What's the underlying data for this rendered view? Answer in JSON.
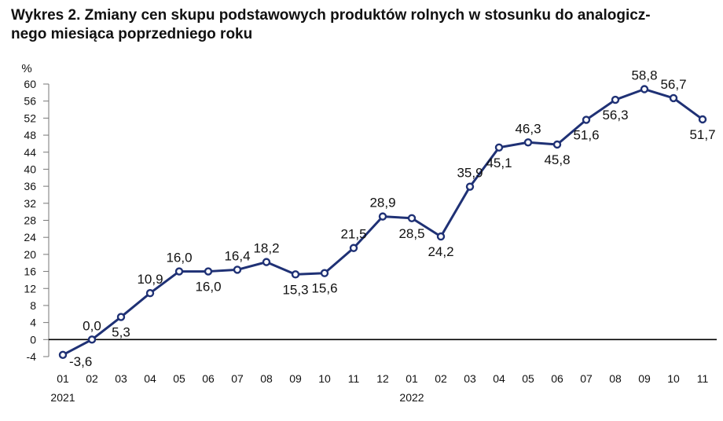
{
  "title": {
    "line1": "Wykres 2. Zmiany cen skupu podstawowych produktów rolnych w stosunku do analogicz-",
    "line2": "nego miesiąca poprzedniego roku"
  },
  "chart_data": {
    "type": "line",
    "ylabel": "%",
    "ylim": [
      -4,
      60
    ],
    "yticks": [
      -4,
      0,
      4,
      8,
      12,
      16,
      20,
      24,
      28,
      32,
      36,
      40,
      44,
      48,
      52,
      56,
      60
    ],
    "categories": [
      "01",
      "02",
      "03",
      "04",
      "05",
      "06",
      "07",
      "08",
      "09",
      "10",
      "11",
      "12",
      "01",
      "02",
      "03",
      "04",
      "05",
      "06",
      "07",
      "08",
      "09",
      "10",
      "11"
    ],
    "year_labels": [
      {
        "index": 0,
        "label": "2021"
      },
      {
        "index": 12,
        "label": "2022"
      }
    ],
    "series": [
      {
        "values": [
          -3.6,
          0.0,
          5.3,
          10.9,
          16.0,
          16.0,
          16.4,
          18.2,
          15.3,
          15.6,
          21.5,
          28.9,
          28.5,
          24.2,
          35.9,
          45.1,
          46.3,
          45.8,
          51.6,
          56.3,
          58.8,
          56.7,
          51.7
        ],
        "labels": [
          "-3,6",
          "0,0",
          "5,3",
          "10,9",
          "16,0",
          "16,0",
          "16,4",
          "18,2",
          "15,3",
          "15,6",
          "21,5",
          "28,9",
          "28,5",
          "24,2",
          "35,9",
          "45,1",
          "46,3",
          "45,8",
          "51,6",
          "56,3",
          "58,8",
          "56,7",
          "51,7"
        ],
        "label_pos": [
          "right",
          "above",
          "below",
          "above",
          "above",
          "below",
          "above",
          "above",
          "below",
          "below",
          "above",
          "above",
          "below",
          "below",
          "above",
          "below",
          "above",
          "below",
          "below",
          "below",
          "above",
          "above",
          "below"
        ],
        "color": "#1f3175"
      }
    ],
    "grid": false,
    "legend": "none"
  }
}
